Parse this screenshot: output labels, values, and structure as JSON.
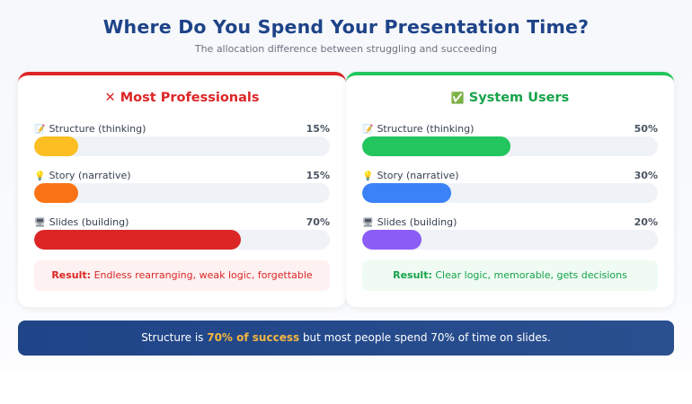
{
  "header": {
    "title": "Where Do You Spend Your Presentation Time?",
    "subtitle": "The allocation difference between struggling and succeeding"
  },
  "cards": [
    {
      "icon": "✕",
      "title": "Most Professionals",
      "accent": "#dc2626",
      "rows": [
        {
          "icon": "📝",
          "label": "Structure (thinking)",
          "pct": "15%",
          "value": 15,
          "color": "#fbbf24"
        },
        {
          "icon": "💡",
          "label": "Story (narrative)",
          "pct": "15%",
          "value": 15,
          "color": "#f97316"
        },
        {
          "icon": "🖥",
          "label": "Slides (building)",
          "pct": "70%",
          "value": 70,
          "color": "#dc2626"
        }
      ],
      "result_label": "Result:",
      "result_text": "Endless rearranging, weak logic, forgettable"
    },
    {
      "icon": "✅",
      "title": "System Users",
      "accent": "#22c55e",
      "rows": [
        {
          "icon": "📝",
          "label": "Structure (thinking)",
          "pct": "50%",
          "value": 50,
          "color": "#22c55e"
        },
        {
          "icon": "💡",
          "label": "Story (narrative)",
          "pct": "30%",
          "value": 30,
          "color": "#3b82f6"
        },
        {
          "icon": "🖥",
          "label": "Slides (building)",
          "pct": "20%",
          "value": 20,
          "color": "#8b5cf6"
        }
      ],
      "result_label": "Result:",
      "result_text": "Clear logic, memorable, gets decisions"
    }
  ],
  "banner": {
    "prefix": "Structure is ",
    "highlight": "70% of success",
    "suffix": " but most people spend 70% of time on slides."
  },
  "chart_data": [
    {
      "type": "bar",
      "title": "Most Professionals",
      "categories": [
        "Structure (thinking)",
        "Story (narrative)",
        "Slides (building)"
      ],
      "values": [
        15,
        15,
        70
      ],
      "unit": "%",
      "ylim": [
        0,
        100
      ]
    },
    {
      "type": "bar",
      "title": "System Users",
      "categories": [
        "Structure (thinking)",
        "Story (narrative)",
        "Slides (building)"
      ],
      "values": [
        50,
        30,
        20
      ],
      "unit": "%",
      "ylim": [
        0,
        100
      ]
    }
  ]
}
